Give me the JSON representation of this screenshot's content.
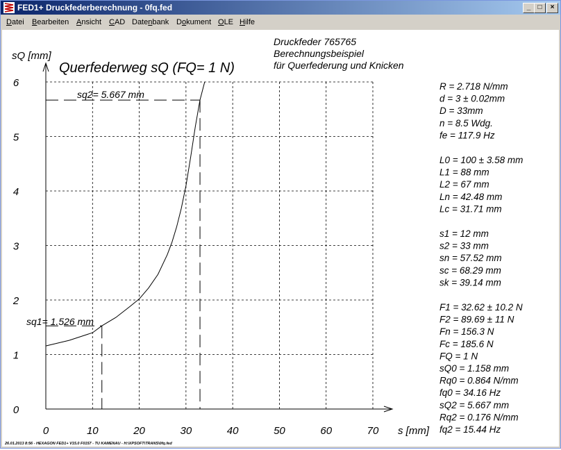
{
  "window": {
    "title": "FED1+  Druckfederberechnung  - 0fq.fed",
    "buttons": {
      "minimize": "_",
      "maximize": "□",
      "close": "×"
    }
  },
  "menu": [
    {
      "label": "Datei"
    },
    {
      "label": "Bearbeiten"
    },
    {
      "label": "Ansicht"
    },
    {
      "label": "CAD"
    },
    {
      "label": "Datenbank"
    },
    {
      "label": "Dokument"
    },
    {
      "label": "OLE"
    },
    {
      "label": "Hilfe"
    }
  ],
  "header": {
    "line1": "Druckfeder  765765",
    "line2": "Berechnungsbeispiel",
    "line3": "für Querfederung und Knicken"
  },
  "footer_text": "26.01.2013 8:56 - HEXAGON FED1+ V15.0 F0157 - TU KAMENAU - H:\\XPSOFT\\TRANS\\0fq.fed",
  "chart_data": {
    "type": "line",
    "title": "Querfederweg sQ  (FQ= 1 N)",
    "xlabel": "s [mm]",
    "ylabel": "sQ [mm]",
    "xlim": [
      0,
      70
    ],
    "ylim": [
      0,
      6
    ],
    "xticks": [
      "0",
      "10",
      "20",
      "30",
      "40",
      "50",
      "60",
      "70"
    ],
    "yticks": [
      "0",
      "1",
      "2",
      "3",
      "4",
      "5",
      "6"
    ],
    "grid": true,
    "series": [
      {
        "x": [
          0,
          5,
          10,
          12,
          15,
          18,
          20,
          22,
          24,
          26,
          27,
          28,
          29,
          30,
          31,
          32,
          33,
          34
        ],
        "y": [
          1.158,
          1.26,
          1.4,
          1.526,
          1.68,
          1.88,
          2.02,
          2.22,
          2.47,
          2.83,
          3.06,
          3.34,
          3.68,
          4.1,
          4.62,
          5.18,
          5.667,
          6.0
        ]
      }
    ],
    "annotations": [
      {
        "text": "sq1= 1.526 mm",
        "x": 12,
        "y": 1.526
      },
      {
        "text": "sq2= 5.667 mm",
        "x": 33,
        "y": 5.667
      }
    ]
  },
  "results": [
    {
      "text": "R  = 2.718 N/mm",
      "group": 0
    },
    {
      "text": "d  = 3 ± 0.02mm",
      "group": 0
    },
    {
      "text": "D = 33mm",
      "group": 0
    },
    {
      "text": "n  = 8.5 Wdg.",
      "group": 0
    },
    {
      "text": "fe = 117.9 Hz",
      "group": 0
    },
    {
      "text": "L0 = 100 ± 3.58 mm",
      "group": 1
    },
    {
      "text": "L1 = 88 mm",
      "group": 1
    },
    {
      "text": "L2 = 67 mm",
      "group": 1
    },
    {
      "text": "Ln = 42.48 mm",
      "group": 1
    },
    {
      "text": "Lc = 31.71 mm",
      "group": 1
    },
    {
      "text": "s1 = 12 mm",
      "group": 2
    },
    {
      "text": "s2 = 33 mm",
      "group": 2
    },
    {
      "text": "sn = 57.52 mm",
      "group": 2
    },
    {
      "text": "sc = 68.29 mm",
      "group": 2
    },
    {
      "text": "sk = 39.14 mm",
      "group": 2
    },
    {
      "text": "F1 = 32.62 ± 10.2 N",
      "group": 3
    },
    {
      "text": "F2 = 89.69 ± 11 N",
      "group": 3
    },
    {
      "text": "Fn = 156.3 N",
      "group": 3
    },
    {
      "text": "Fc = 185.6 N",
      "group": 3
    },
    {
      "text": "FQ = 1 N",
      "group": 3
    },
    {
      "text": "sQ0 = 1.158 mm",
      "group": 3
    },
    {
      "text": "Rq0 = 0.864 N/mm",
      "group": 3
    },
    {
      "text": "fq0 = 34.16 Hz",
      "group": 3
    },
    {
      "text": "sQ2 = 5.667 mm",
      "group": 3
    },
    {
      "text": "Rq2 = 0.176 N/mm",
      "group": 3
    },
    {
      "text": "fq2 = 15.44 Hz",
      "group": 3
    }
  ]
}
